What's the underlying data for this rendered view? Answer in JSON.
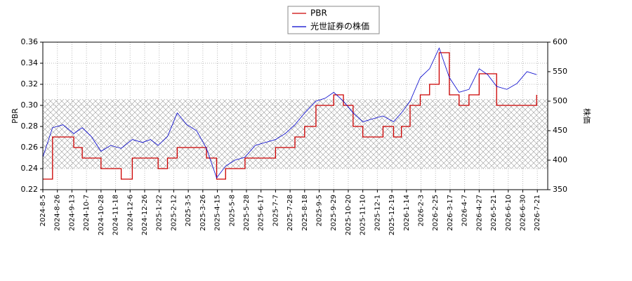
{
  "chart_data": {
    "type": "line",
    "series": [
      {
        "name": "PBR",
        "color": "#cc0000",
        "axis": "y",
        "step": true,
        "values": [
          0.23,
          0.27,
          0.27,
          0.26,
          0.25,
          0.25,
          0.24,
          0.24,
          0.23,
          0.25,
          0.25,
          0.25,
          0.24,
          0.25,
          0.26,
          0.26,
          0.26,
          0.25,
          0.23,
          0.24,
          0.24,
          0.25,
          0.25,
          0.25,
          0.26,
          0.26,
          0.27,
          0.28,
          0.3,
          0.3,
          0.31,
          0.3,
          0.28,
          0.27,
          0.27,
          0.28,
          0.27,
          0.28,
          0.3,
          0.31,
          0.32,
          0.35,
          0.31,
          0.3,
          0.31,
          0.33,
          0.33,
          0.3,
          0.3,
          0.3,
          0.3,
          0.31
        ]
      },
      {
        "name": "光世証券の株価",
        "color": "#0000cc",
        "axis": "y2",
        "values": [
          405,
          455,
          460,
          445,
          455,
          440,
          415,
          425,
          420,
          435,
          430,
          435,
          425,
          440,
          480,
          460,
          450,
          420,
          370,
          390,
          400,
          405,
          425,
          430,
          435,
          445,
          460,
          480,
          500,
          505,
          515,
          500,
          480,
          465,
          470,
          475,
          465,
          480,
          500,
          540,
          555,
          590,
          540,
          515,
          520,
          555,
          545,
          525,
          520,
          530,
          550,
          545
        ]
      }
    ],
    "x": [
      "2024-8-5",
      "2024-8-19",
      "2024-9-2",
      "2024-9-16",
      "2024-9-30",
      "2024-10-14",
      "2024-10-28",
      "2024-11-11",
      "2024-11-25",
      "2024-12-9",
      "2024-12-23",
      "2025-1-6",
      "2025-1-20",
      "2025-2-3",
      "2025-2-17",
      "2025-3-3",
      "2025-3-17",
      "2025-3-31",
      "2025-4-14",
      "2025-4-28",
      "2025-5-12",
      "2025-5-26",
      "2025-6-9",
      "2025-6-23",
      "2025-7-7",
      "2025-7-21",
      "2025-8-4",
      "2025-8-18",
      "2025-9-1",
      "2025-9-15",
      "2025-9-29",
      "2025-10-13",
      "2025-10-27",
      "2025-11-10",
      "2025-11-24",
      "2025-12-8",
      "2025-12-22",
      "2026-1-5",
      "2026-1-19",
      "2026-2-2",
      "2026-2-16",
      "2026-3-2",
      "2026-3-16",
      "2026-3-30",
      "2026-4-13",
      "2026-4-27",
      "2026-5-11",
      "2026-5-25",
      "2026-6-8",
      "2026-6-22",
      "2026-7-6",
      "2026-7-20"
    ],
    "xlim": [
      "2024-8-5",
      "2026-8-5"
    ],
    "xticks": [
      "2024-8-5",
      "2024-8-26",
      "2024-9-13",
      "2024-10-7",
      "2024-10-28",
      "2024-11-18",
      "2024-12-6",
      "2024-12-26",
      "2025-1-22",
      "2025-2-12",
      "2025-3-5",
      "2025-3-26",
      "2025-4-15",
      "2025-5-8",
      "2025-5-28",
      "2025-6-17",
      "2025-7-7",
      "2025-7-28",
      "2025-8-18",
      "2025-9-5",
      "2025-9-29",
      "2025-10-20",
      "2025-11-10",
      "2025-12-1",
      "2025-12-19",
      "2026-1-14",
      "2026-2-3",
      "2026-2-25",
      "2026-3-17",
      "2026-4-7",
      "2026-4-27",
      "2026-5-21",
      "2026-6-10",
      "2026-6-30",
      "2026-7-21"
    ],
    "ylabel": "PBR",
    "ylim": [
      0.22,
      0.36
    ],
    "yticks": [
      0.22,
      0.24,
      0.26,
      0.28,
      {
        "value": 0.3,
        "label": "0.30"
      },
      0.32,
      0.34,
      0.36
    ],
    "y2label": "株価",
    "y2lim": [
      350,
      600
    ],
    "y2ticks": [
      350,
      400,
      450,
      500,
      550,
      600
    ],
    "hatch_band": [
      0.24,
      0.306
    ],
    "grid": true,
    "legend": "top"
  }
}
